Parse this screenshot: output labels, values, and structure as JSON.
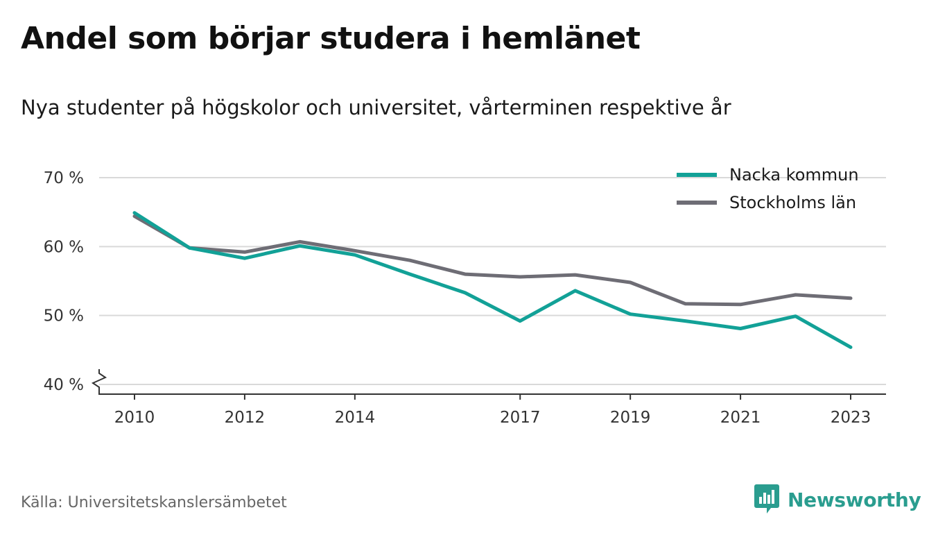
{
  "title": "Andel som börjar studera i hemlänet",
  "subtitle": "Nya studenter på högskolor och universitet, vårterminen respektive år",
  "source": "Källa: Universitetskanslersämbetet",
  "brand": "Newsworthy",
  "colors": {
    "nacka": "#12a197",
    "stockholm": "#6e6d75",
    "grid": "#d9d9d9",
    "axis": "#333333",
    "brand": "#2a9d8f"
  },
  "chart_data": {
    "type": "line",
    "x": [
      2010,
      2011,
      2012,
      2013,
      2014,
      2015,
      2016,
      2017,
      2018,
      2019,
      2020,
      2021,
      2022,
      2023
    ],
    "x_ticks": [
      2010,
      2012,
      2014,
      2017,
      2019,
      2021,
      2023
    ],
    "x_tick_labels": [
      "2010",
      "2012",
      "2014",
      "2017",
      "2019",
      "2021",
      "2023"
    ],
    "y_ticks": [
      40,
      50,
      60,
      70
    ],
    "y_tick_labels": [
      "40 %",
      "50 %",
      "60 %",
      "70 %"
    ],
    "ylim": [
      40,
      70
    ],
    "y_axis_break": true,
    "grid": true,
    "legend_position": "top-right",
    "series": [
      {
        "name": "Nacka kommun",
        "color": "#12a197",
        "values": [
          64.9,
          59.8,
          58.3,
          60.1,
          58.8,
          56.0,
          53.3,
          49.2,
          53.6,
          50.2,
          49.2,
          48.1,
          49.9,
          45.4
        ]
      },
      {
        "name": "Stockholms län",
        "color": "#6e6d75",
        "values": [
          64.4,
          59.8,
          59.2,
          60.7,
          59.4,
          58.0,
          56.0,
          55.6,
          55.9,
          54.8,
          51.7,
          51.6,
          53.0,
          52.5
        ]
      }
    ]
  }
}
